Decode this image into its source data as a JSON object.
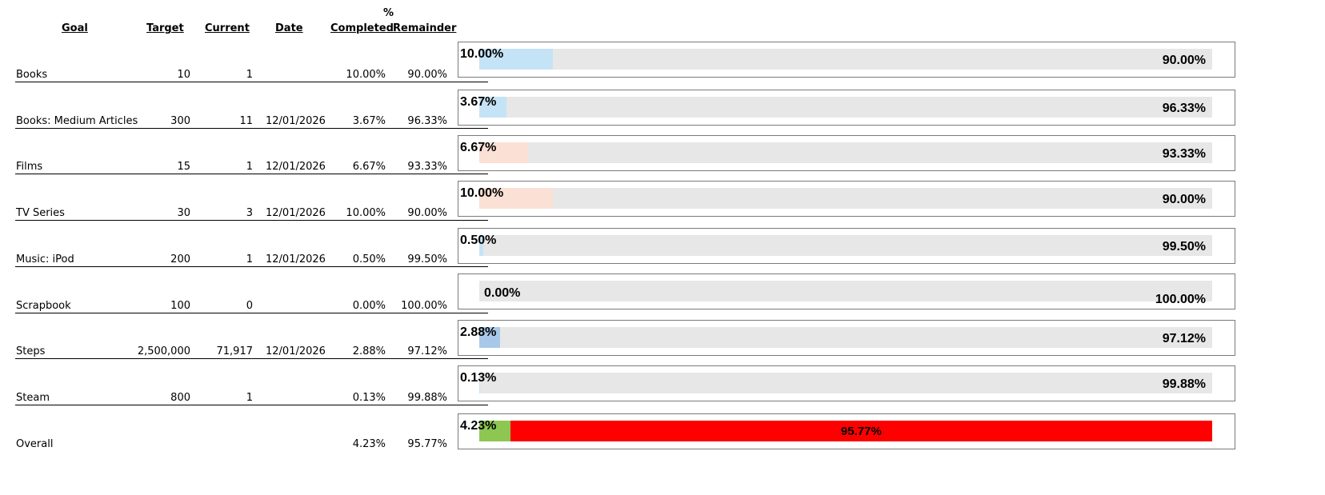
{
  "headers": {
    "goal": "Goal",
    "target": "Target",
    "current": "Current",
    "date": "Date",
    "completed_top": "%",
    "completed": "Completed",
    "remainder": "Remainder"
  },
  "colors": {
    "track": "#e7e7e7",
    "light_blue": "#c5e3f6",
    "light_peach": "#fbe0d6",
    "mid_blue": "#a8c8ea",
    "green": "#8ec652",
    "red": "#ff0000"
  },
  "chart_data": {
    "type": "bar",
    "orientation": "horizontal-stacked-100",
    "categories": [
      "Books",
      "Books: Medium Articles",
      "Films",
      "TV Series",
      "Music: iPod",
      "Scrapbook",
      "Steps",
      "Steam",
      "Overall"
    ],
    "series": [
      {
        "name": "% Completed",
        "values": [
          10.0,
          3.67,
          6.67,
          10.0,
          0.5,
          0.0,
          2.88,
          0.13,
          4.23
        ]
      },
      {
        "name": "Remainder",
        "values": [
          90.0,
          96.33,
          93.33,
          90.0,
          99.5,
          100.0,
          97.12,
          99.88,
          95.77
        ]
      }
    ],
    "ylim": [
      0,
      100
    ]
  },
  "rows": [
    {
      "goal": "Books",
      "target": "10",
      "current": "1",
      "date": "",
      "completed": "10.00%",
      "remainder": "90.00%",
      "pct": 10.0,
      "bar_completed": "10.00%",
      "bar_remainder": "90.00%",
      "fill_color": "#c5e3f6",
      "rem_color": "#e7e7e7"
    },
    {
      "goal": "Books: Medium Articles",
      "target": "300",
      "current": "11",
      "date": "12/01/2026",
      "completed": "3.67%",
      "remainder": "96.33%",
      "pct": 3.67,
      "bar_completed": "3.67%",
      "bar_remainder": "96.33%",
      "fill_color": "#c5e3f6",
      "rem_color": "#e7e7e7"
    },
    {
      "goal": "Films",
      "target": "15",
      "current": "1",
      "date": "12/01/2026",
      "completed": "6.67%",
      "remainder": "93.33%",
      "pct": 6.67,
      "bar_completed": "6.67%",
      "bar_remainder": "93.33%",
      "fill_color": "#fbe0d6",
      "rem_color": "#e7e7e7"
    },
    {
      "goal": "TV Series",
      "target": "30",
      "current": "3",
      "date": "12/01/2026",
      "completed": "10.00%",
      "remainder": "90.00%",
      "pct": 10.0,
      "bar_completed": "10.00%",
      "bar_remainder": "90.00%",
      "fill_color": "#fbe0d6",
      "rem_color": "#e7e7e7"
    },
    {
      "goal": "Music: iPod",
      "target": "200",
      "current": "1",
      "date": "12/01/2026",
      "completed": "0.50%",
      "remainder": "99.50%",
      "pct": 0.5,
      "bar_completed": "0.50%",
      "bar_remainder": "99.50%",
      "fill_color": "#c5e3f6",
      "rem_color": "#e7e7e7"
    },
    {
      "goal": "Scrapbook",
      "target": "100",
      "current": "0",
      "date": "",
      "completed": "0.00%",
      "remainder": "100.00%",
      "pct": 0.0,
      "bar_completed": "0.00%",
      "bar_remainder": "100.00%",
      "fill_color": "#c5e3f6",
      "rem_color": "#e7e7e7"
    },
    {
      "goal": "Steps",
      "target": "2,500,000",
      "current": "71,917",
      "date": "12/01/2026",
      "completed": "2.88%",
      "remainder": "97.12%",
      "pct": 2.88,
      "bar_completed": "2.88%",
      "bar_remainder": "97.12%",
      "fill_color": "#a8c8ea",
      "rem_color": "#e7e7e7"
    },
    {
      "goal": "Steam",
      "target": "800",
      "current": "1",
      "date": "",
      "completed": "0.13%",
      "remainder": "99.88%",
      "pct": 0.13,
      "bar_completed": "0.13%",
      "bar_remainder": "99.88%",
      "fill_color": "#c5e3f6",
      "rem_color": "#e7e7e7"
    },
    {
      "goal": "Overall",
      "target": "",
      "current": "",
      "date": "",
      "completed": "4.23%",
      "remainder": "95.77%",
      "pct": 4.23,
      "bar_completed": "4.23%",
      "bar_remainder": "95.77%",
      "fill_color": "#8ec652",
      "rem_color": "#ff0000"
    }
  ]
}
